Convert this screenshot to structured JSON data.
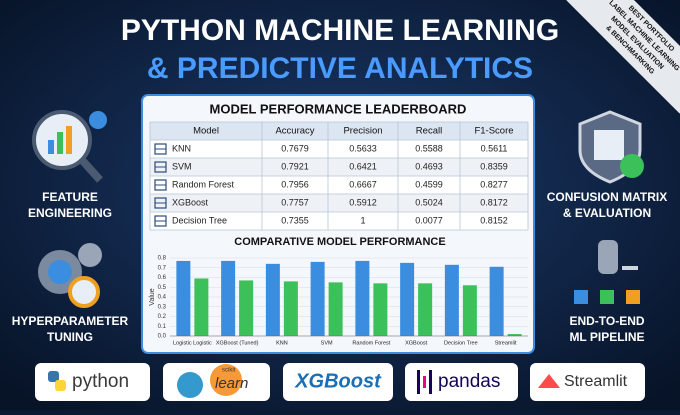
{
  "header": {
    "line1": "PYTHON MACHINE LEARNING",
    "line2": "& PREDICTIVE ANALYTICS"
  },
  "ribbon": [
    "BEST PORTFOLIO",
    "LABEL MACHINE LEARNING",
    "MODEL EVALUATION",
    "& BENCHMARKING"
  ],
  "features": {
    "left_top": [
      "FEATURE",
      "ENGINEERING"
    ],
    "left_bottom": [
      "HYPERPARAMETER",
      "TUNING"
    ],
    "right_top": [
      "CONFUSION MATRIX",
      "& EVALUATION"
    ],
    "right_bottom": [
      "END-TO-END",
      "ML PIPELINE"
    ]
  },
  "table": {
    "title": "MODEL PERFORMANCE LEADERBOARD",
    "columns": [
      "Model",
      "Accuracy",
      "Precision",
      "Recall",
      "F1-Score"
    ],
    "rows": [
      [
        "KNN",
        "0.7679",
        "0.5633",
        "0.5588",
        "0.5611"
      ],
      [
        "SVM",
        "0.7921",
        "0.6421",
        "0.4693",
        "0.8359"
      ],
      [
        "Random Forest",
        "0.7956",
        "0.6667",
        "0.4599",
        "0.8277"
      ],
      [
        "XGBoost",
        "0.7757",
        "0.5912",
        "0.5024",
        "0.8172"
      ],
      [
        "Decision Tree",
        "0.7355",
        "1",
        "0.0077",
        "0.8152"
      ]
    ]
  },
  "chart_data": {
    "type": "bar",
    "title": "COMPARATIVE MODEL PERFORMANCE",
    "y_label": "Value",
    "categories": [
      "Logistic Logistic",
      "XGBoost (Tuned)",
      "KNN",
      "SVM",
      "Random Forest",
      "XGBoost",
      "Decision Tree",
      "Streamlit"
    ],
    "series": [
      {
        "color": "#3b8de0",
        "values": [
          0.77,
          0.77,
          0.74,
          0.76,
          0.77,
          0.75,
          0.73,
          0.71
        ]
      },
      {
        "color": "#3cc05a",
        "values": [
          0.59,
          0.57,
          0.56,
          0.55,
          0.54,
          0.54,
          0.52,
          0.02
        ]
      }
    ],
    "ylim": [
      0,
      0.8
    ],
    "yticks": [
      {
        "value": 0,
        "label": "0.0"
      },
      0.1,
      0.2,
      0.3,
      0.4,
      0.5,
      0.6,
      0.7,
      0.8
    ],
    "grid": true
  },
  "logos": {
    "python": "python",
    "sklearn_small": "scikit",
    "sklearn": "learn",
    "xgboost": "XGBoost",
    "pandas": "pandas",
    "streamlit": "Streamlit"
  }
}
